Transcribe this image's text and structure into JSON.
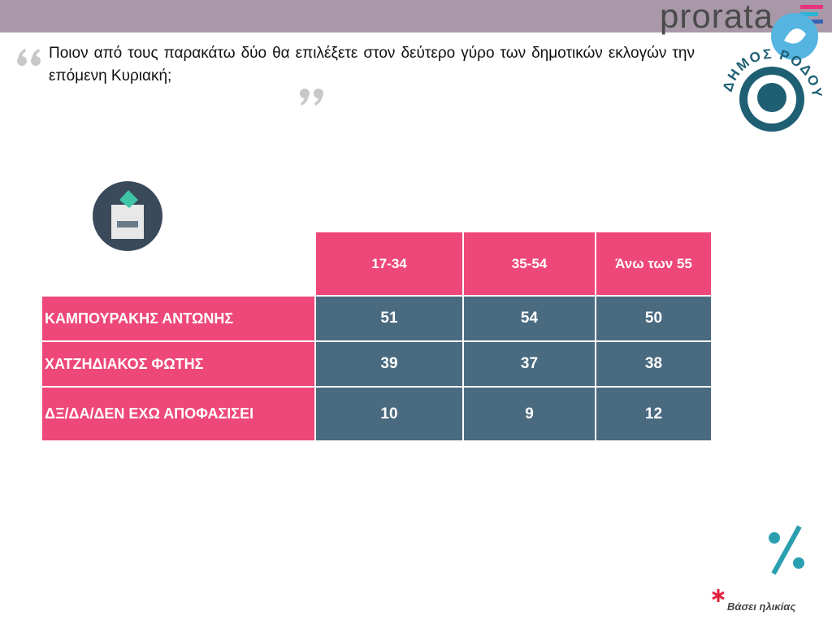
{
  "header": {
    "brand": "prorata"
  },
  "logo": {
    "text": "ΔΗΜΟΣ ΡΟΔΟΥ"
  },
  "question": "Ποιον από τους παρακάτω δύο θα επιλέξετε στον δεύτερο γύρο των δημοτικών εκλογών την επόμενη Κυριακή;",
  "table": {
    "columns": [
      "17-34",
      "35-54",
      "Άνω των 55"
    ],
    "rows": [
      {
        "label": "ΚΑΜΠΟΥΡΑΚΗΣ ΑΝΤΩΝΗΣ",
        "values": [
          51,
          54,
          50
        ]
      },
      {
        "label": "ΧΑΤΖΗΔΙΑΚΟΣ ΦΩΤΗΣ",
        "values": [
          39,
          37,
          38
        ]
      },
      {
        "label": "ΔΞ/ΔΑ/ΔΕΝ ΕΧΩ ΑΠΟΦΑΣΙΣΕΙ",
        "values": [
          10,
          9,
          12
        ]
      }
    ]
  },
  "footnote": "Βάσει ηλικίας"
}
